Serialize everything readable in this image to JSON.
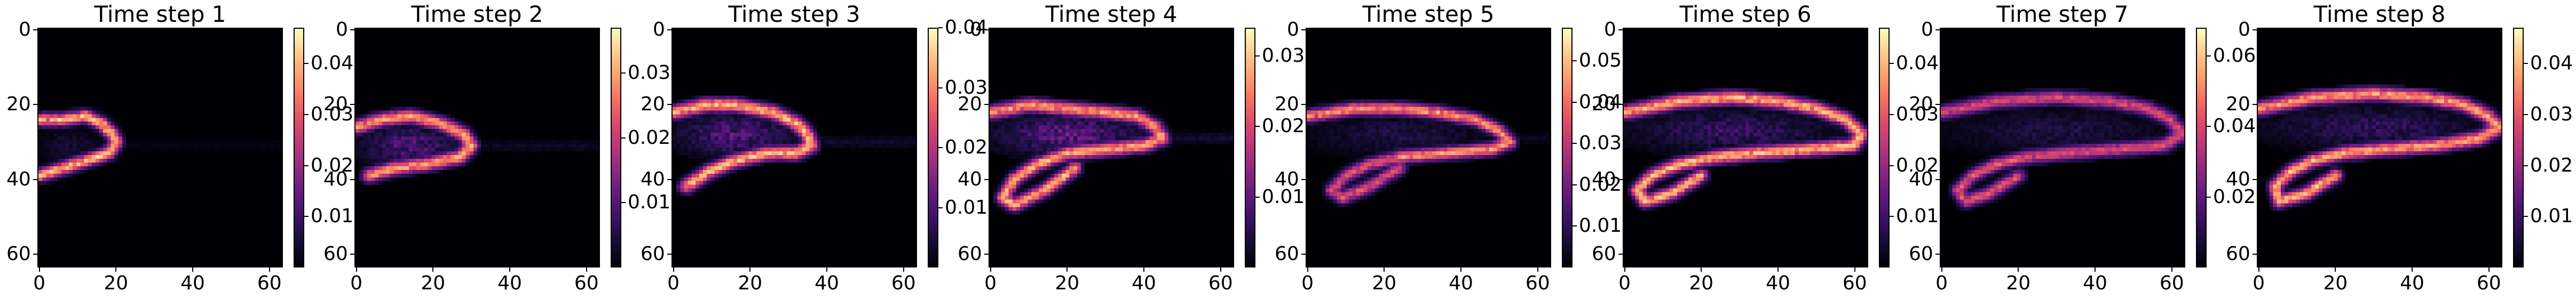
{
  "chart_data": [
    {
      "type": "heatmap",
      "title": "Time step 1",
      "x_ticks": [
        0,
        20,
        40,
        60
      ],
      "y_ticks": [
        0,
        20,
        40,
        60
      ],
      "xlim": [
        0,
        63
      ],
      "ylim": [
        63,
        0
      ],
      "colorbar_ticks": [
        0.01,
        0.02,
        0.03,
        0.04
      ],
      "colorbar_range": [
        0.0,
        0.047
      ],
      "colormap": "magma",
      "features": [
        {
          "kind": "edge",
          "points": [
            [
              0,
              24
            ],
            [
              6,
              24
            ],
            [
              12,
              23
            ],
            [
              16,
              25
            ],
            [
              19,
              28
            ],
            [
              20,
              30
            ],
            [
              18,
              33
            ],
            [
              12,
              35
            ],
            [
              6,
              37
            ],
            [
              0,
              39
            ]
          ],
          "value": 0.045,
          "spread": 1.2
        },
        {
          "kind": "blob",
          "center": [
            8,
            31
          ],
          "rx": 9,
          "ry": 5,
          "value": 0.006
        },
        {
          "kind": "wake",
          "x0": 20,
          "x1": 63,
          "y": 31,
          "value": 0.002
        }
      ]
    },
    {
      "type": "heatmap",
      "title": "Time step 2",
      "x_ticks": [
        0,
        20,
        40,
        60
      ],
      "y_ticks": [
        0,
        20,
        40,
        60
      ],
      "xlim": [
        0,
        63
      ],
      "ylim": [
        63,
        0
      ],
      "colorbar_ticks": [
        0.01,
        0.02,
        0.03
      ],
      "colorbar_range": [
        0.0,
        0.037
      ],
      "colormap": "magma",
      "features": [
        {
          "kind": "edge",
          "points": [
            [
              0,
              26
            ],
            [
              6,
              24
            ],
            [
              14,
              23
            ],
            [
              22,
              25
            ],
            [
              28,
              28
            ],
            [
              30,
              31
            ],
            [
              27,
              34
            ],
            [
              18,
              36
            ],
            [
              10,
              37
            ],
            [
              3,
              39
            ]
          ],
          "value": 0.033,
          "spread": 1.3
        },
        {
          "kind": "blob",
          "center": [
            14,
            31
          ],
          "rx": 14,
          "ry": 6,
          "value": 0.012
        },
        {
          "kind": "wake",
          "x0": 28,
          "x1": 63,
          "y": 31,
          "value": 0.003
        }
      ]
    },
    {
      "type": "heatmap",
      "title": "Time step 3",
      "x_ticks": [
        0,
        20,
        40,
        60
      ],
      "y_ticks": [
        0,
        20,
        40,
        60
      ],
      "xlim": [
        0,
        63
      ],
      "ylim": [
        63,
        0
      ],
      "colorbar_ticks": [
        0.01,
        0.02,
        0.03,
        0.04
      ],
      "colorbar_range": [
        0.0,
        0.04
      ],
      "colormap": "magma",
      "features": [
        {
          "kind": "edge",
          "points": [
            [
              0,
              22
            ],
            [
              8,
              20
            ],
            [
              16,
              20
            ],
            [
              26,
              22
            ],
            [
              32,
              25
            ],
            [
              35,
              28
            ],
            [
              36,
              31
            ],
            [
              32,
              33
            ],
            [
              24,
              33
            ],
            [
              16,
              35
            ],
            [
              9,
              38
            ],
            [
              3,
              42
            ]
          ],
          "value": 0.038,
          "spread": 1.3
        },
        {
          "kind": "blob",
          "center": [
            16,
            28
          ],
          "rx": 16,
          "ry": 6,
          "value": 0.014
        },
        {
          "kind": "wake",
          "x0": 34,
          "x1": 63,
          "y": 30,
          "value": 0.004
        }
      ]
    },
    {
      "type": "heatmap",
      "title": "Time step 4",
      "x_ticks": [
        0,
        20,
        40,
        60
      ],
      "y_ticks": [
        0,
        20,
        40,
        60
      ],
      "xlim": [
        0,
        63
      ],
      "ylim": [
        63,
        0
      ],
      "colorbar_ticks": [
        0.01,
        0.02,
        0.03
      ],
      "colorbar_range": [
        0.0,
        0.034
      ],
      "colormap": "magma",
      "features": [
        {
          "kind": "edge",
          "points": [
            [
              0,
              22
            ],
            [
              10,
              20
            ],
            [
              20,
              21
            ],
            [
              30,
              22
            ],
            [
              38,
              23
            ],
            [
              43,
              26
            ],
            [
              45,
              29
            ],
            [
              40,
              31
            ],
            [
              30,
              32
            ],
            [
              20,
              33
            ]
          ],
          "value": 0.03,
          "spread": 1.3
        },
        {
          "kind": "edge",
          "points": [
            [
              20,
              33
            ],
            [
              12,
              36
            ],
            [
              6,
              40
            ],
            [
              3,
              45
            ],
            [
              6,
              47
            ],
            [
              14,
              43
            ],
            [
              22,
              37
            ]
          ],
          "value": 0.032,
          "spread": 1.2
        },
        {
          "kind": "blob",
          "center": [
            20,
            28
          ],
          "rx": 20,
          "ry": 6,
          "value": 0.013
        },
        {
          "kind": "wake",
          "x0": 40,
          "x1": 63,
          "y": 29,
          "value": 0.004
        }
      ]
    },
    {
      "type": "heatmap",
      "title": "Time step 5",
      "x_ticks": [
        0,
        20,
        40,
        60
      ],
      "y_ticks": [
        0,
        20,
        40,
        60
      ],
      "xlim": [
        0,
        63
      ],
      "ylim": [
        63,
        0
      ],
      "colorbar_ticks": [
        0.01,
        0.02,
        0.03,
        0.04,
        0.05
      ],
      "colorbar_range": [
        0.0,
        0.058
      ],
      "colormap": "magma",
      "features": [
        {
          "kind": "edge",
          "points": [
            [
              0,
              23
            ],
            [
              12,
              21
            ],
            [
              24,
              21
            ],
            [
              34,
              22
            ],
            [
              44,
              24
            ],
            [
              50,
              27
            ],
            [
              53,
              30
            ],
            [
              48,
              32
            ],
            [
              36,
              33
            ],
            [
              24,
              34
            ]
          ],
          "value": 0.05,
          "spread": 1.2
        },
        {
          "kind": "edge",
          "points": [
            [
              24,
              34
            ],
            [
              16,
              36
            ],
            [
              10,
              39
            ],
            [
              6,
              43
            ],
            [
              9,
              45
            ],
            [
              16,
              42
            ],
            [
              24,
              37
            ]
          ],
          "value": 0.04,
          "spread": 1.2
        },
        {
          "kind": "blob",
          "center": [
            24,
            28
          ],
          "rx": 24,
          "ry": 6,
          "value": 0.01
        },
        {
          "kind": "wake",
          "x0": 50,
          "x1": 63,
          "y": 29,
          "value": 0.004
        }
      ]
    },
    {
      "type": "heatmap",
      "title": "Time step 6",
      "x_ticks": [
        0,
        20,
        40,
        60
      ],
      "y_ticks": [
        0,
        20,
        40,
        60
      ],
      "xlim": [
        0,
        63
      ],
      "ylim": [
        63,
        0
      ],
      "colorbar_ticks": [
        0.01,
        0.02,
        0.03,
        0.04
      ],
      "colorbar_range": [
        0.0,
        0.047
      ],
      "colormap": "magma",
      "features": [
        {
          "kind": "edge",
          "points": [
            [
              0,
              22
            ],
            [
              14,
              19
            ],
            [
              28,
              18
            ],
            [
              40,
              19
            ],
            [
              50,
              21
            ],
            [
              58,
              24
            ],
            [
              62,
              28
            ],
            [
              60,
              31
            ],
            [
              48,
              32
            ],
            [
              34,
              33
            ],
            [
              24,
              34
            ]
          ],
          "value": 0.044,
          "spread": 1.3
        },
        {
          "kind": "edge",
          "points": [
            [
              24,
              34
            ],
            [
              14,
              36
            ],
            [
              7,
              39
            ],
            [
              3,
              43
            ],
            [
              5,
              46
            ],
            [
              12,
              44
            ],
            [
              20,
              39
            ]
          ],
          "value": 0.045,
          "spread": 1.2
        },
        {
          "kind": "blob",
          "center": [
            28,
            27
          ],
          "rx": 28,
          "ry": 6,
          "value": 0.012
        },
        {
          "kind": "wake",
          "x0": 60,
          "x1": 63,
          "y": 29,
          "value": 0.006
        }
      ]
    },
    {
      "type": "heatmap",
      "title": "Time step 7",
      "x_ticks": [
        0,
        20,
        40,
        60
      ],
      "y_ticks": [
        0,
        20,
        40,
        60
      ],
      "xlim": [
        0,
        63
      ],
      "ylim": [
        63,
        0
      ],
      "colorbar_ticks": [
        0.02,
        0.04,
        0.06
      ],
      "colorbar_range": [
        0.0,
        0.068
      ],
      "colormap": "magma",
      "features": [
        {
          "kind": "edge",
          "points": [
            [
              0,
              22
            ],
            [
              14,
              19
            ],
            [
              30,
              18
            ],
            [
              44,
              19
            ],
            [
              54,
              21
            ],
            [
              60,
              24
            ],
            [
              63,
              28
            ],
            [
              58,
              31
            ],
            [
              46,
              32
            ],
            [
              32,
              33
            ],
            [
              22,
              34
            ]
          ],
          "value": 0.045,
          "spread": 1.3
        },
        {
          "kind": "edge",
          "points": [
            [
              22,
              34
            ],
            [
              14,
              36
            ],
            [
              8,
              39
            ],
            [
              4,
              43
            ],
            [
              6,
              46
            ],
            [
              12,
              44
            ],
            [
              20,
              39
            ]
          ],
          "value": 0.048,
          "spread": 1.2
        },
        {
          "kind": "blob",
          "center": [
            30,
            27
          ],
          "rx": 30,
          "ry": 6,
          "value": 0.012
        },
        {
          "kind": "wake",
          "x0": 60,
          "x1": 63,
          "y": 28,
          "value": 0.006
        }
      ]
    },
    {
      "type": "heatmap",
      "title": "Time step 8",
      "x_ticks": [
        0,
        20,
        40,
        60
      ],
      "y_ticks": [
        0,
        20,
        40,
        60
      ],
      "xlim": [
        0,
        63
      ],
      "ylim": [
        63,
        0
      ],
      "colorbar_ticks": [
        0.01,
        0.02,
        0.03,
        0.04
      ],
      "colorbar_range": [
        0.0,
        0.047
      ],
      "colormap": "magma",
      "features": [
        {
          "kind": "edge",
          "points": [
            [
              0,
              21
            ],
            [
              14,
              18
            ],
            [
              30,
              17
            ],
            [
              44,
              18
            ],
            [
              54,
              20
            ],
            [
              60,
              23
            ],
            [
              63,
              26
            ],
            [
              58,
              29
            ],
            [
              46,
              31
            ],
            [
              32,
              32
            ],
            [
              22,
              33
            ]
          ],
          "value": 0.042,
          "spread": 1.3
        },
        {
          "kind": "edge",
          "points": [
            [
              22,
              33
            ],
            [
              14,
              35
            ],
            [
              8,
              38
            ],
            [
              4,
              42
            ],
            [
              5,
              46
            ],
            [
              12,
              44
            ],
            [
              20,
              39
            ]
          ],
          "value": 0.045,
          "spread": 1.2
        },
        {
          "kind": "blob",
          "center": [
            30,
            26
          ],
          "rx": 30,
          "ry": 6,
          "value": 0.011
        },
        {
          "kind": "wake",
          "x0": 60,
          "x1": 63,
          "y": 27,
          "value": 0.006
        }
      ]
    }
  ]
}
